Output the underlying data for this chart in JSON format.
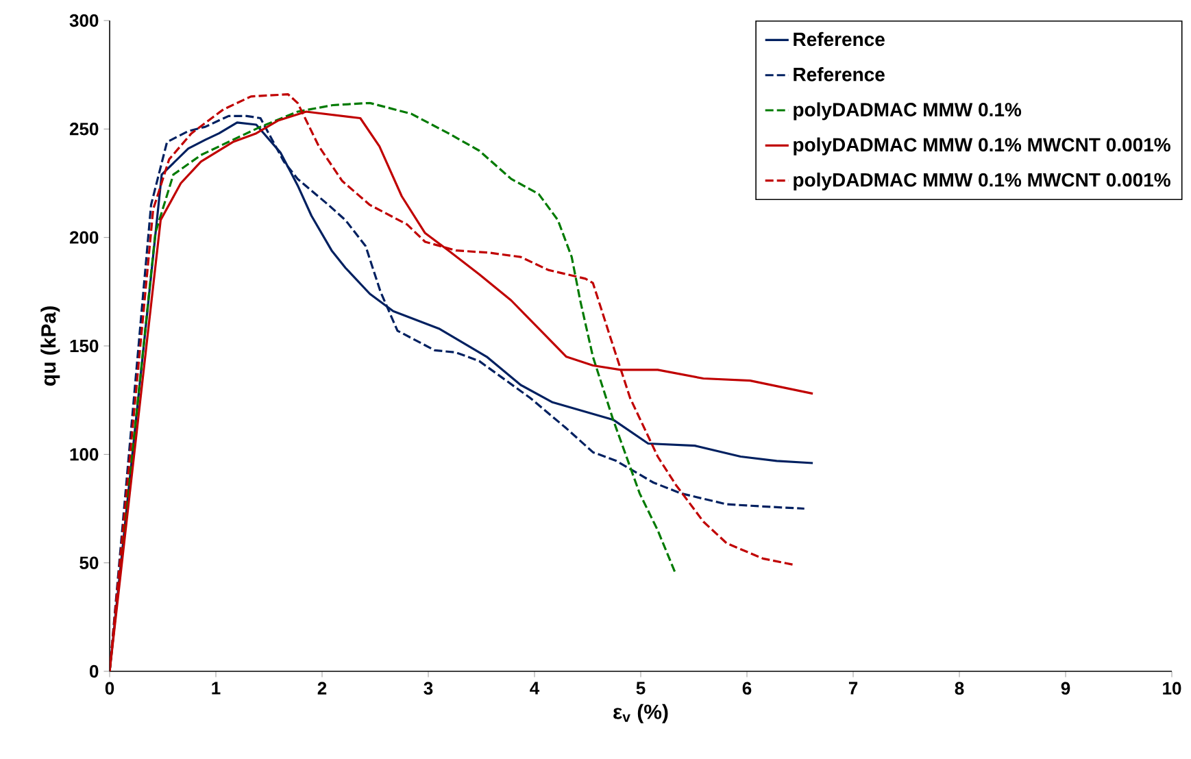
{
  "chart_data": {
    "type": "line",
    "xlabel": "ε$_{v}$ (%)",
    "ylabel": "qu (kPa)",
    "xlim": [
      0,
      10
    ],
    "ylim": [
      0,
      300
    ],
    "xticks": [
      0,
      1,
      2,
      3,
      4,
      5,
      6,
      7,
      8,
      9,
      10
    ],
    "yticks": [
      0,
      50,
      100,
      150,
      200,
      250,
      300
    ],
    "grid": false,
    "legend": "top right",
    "marker": "none",
    "series": [
      {
        "name": "Reference",
        "color": "#002060",
        "line_style": "solid",
        "x": [
          0,
          0.49,
          0.74,
          0.9,
          1.03,
          1.2,
          1.38,
          1.61,
          1.77,
          1.9,
          2.09,
          2.22,
          2.45,
          2.67,
          3.1,
          3.55,
          3.87,
          4.17,
          4.74,
          5.07,
          5.51,
          5.94,
          6.28,
          6.62
        ],
        "values": [
          0,
          229,
          241,
          245,
          248,
          253,
          252,
          239,
          224,
          210,
          194,
          186,
          174,
          166,
          158,
          145,
          132,
          124,
          116,
          105,
          104,
          99,
          97,
          96
        ]
      },
      {
        "name": "Reference",
        "color": "#002060",
        "line_style": "dashed",
        "x": [
          0,
          0.39,
          0.54,
          0.74,
          0.9,
          1.12,
          1.29,
          1.42,
          1.64,
          1.77,
          2.06,
          2.22,
          2.41,
          2.55,
          2.71,
          3.06,
          3.26,
          3.48,
          3.96,
          4.3,
          4.55,
          4.77,
          5.12,
          5.38,
          5.81,
          6.15,
          6.54
        ],
        "values": [
          0,
          215,
          244,
          249,
          251,
          256,
          256,
          255,
          235,
          227,
          215,
          208,
          196,
          175,
          157,
          148,
          147,
          143,
          126,
          112,
          101,
          97,
          87,
          82,
          77,
          76,
          75
        ]
      },
      {
        "name": "polyDADMAC MMW 0.1%",
        "color": "#007a00",
        "line_style": "dashed",
        "x": [
          0,
          0.43,
          0.6,
          0.86,
          1.16,
          1.42,
          1.77,
          2.1,
          2.45,
          2.84,
          3.19,
          3.48,
          3.78,
          4.04,
          4.22,
          4.35,
          4.43,
          4.55,
          4.74,
          4.99,
          5.16,
          5.32
        ],
        "values": [
          0,
          202,
          229,
          238,
          245,
          251,
          258,
          261,
          262,
          257,
          248,
          240,
          227,
          220,
          208,
          191,
          171,
          145,
          116,
          82,
          65,
          46
        ]
      },
      {
        "name": "polyDADMAC MMW 0.1% MWCNT 0.001%",
        "color": "#c00000",
        "line_style": "solid",
        "x": [
          0,
          0.48,
          0.67,
          0.86,
          1.16,
          1.38,
          1.59,
          1.85,
          2.19,
          2.36,
          2.54,
          2.75,
          2.97,
          3.19,
          3.48,
          3.78,
          4.04,
          4.3,
          4.55,
          4.81,
          5.16,
          5.59,
          6.03,
          6.62
        ],
        "values": [
          0,
          208,
          225,
          235,
          244,
          248,
          254,
          258,
          256,
          255,
          242,
          219,
          202,
          194,
          183,
          171,
          158,
          145,
          141,
          139,
          139,
          135,
          134,
          128
        ]
      },
      {
        "name": "polyDADMAC MMW 0.1% MWCNT 0.001%",
        "color": "#c00000",
        "line_style": "dashed",
        "x": [
          0,
          0.41,
          0.56,
          0.77,
          1.07,
          1.33,
          1.68,
          1.77,
          1.97,
          2.19,
          2.45,
          2.8,
          2.97,
          3.26,
          3.57,
          3.87,
          4.13,
          4.48,
          4.55,
          4.74,
          4.9,
          5.16,
          5.33,
          5.59,
          5.81,
          6.15,
          6.45
        ],
        "values": [
          0,
          213,
          236,
          248,
          259,
          265,
          266,
          262,
          242,
          226,
          215,
          206,
          198,
          194,
          193,
          191,
          185,
          181,
          179,
          150,
          126,
          99,
          86,
          69,
          59,
          52,
          49
        ]
      }
    ]
  }
}
